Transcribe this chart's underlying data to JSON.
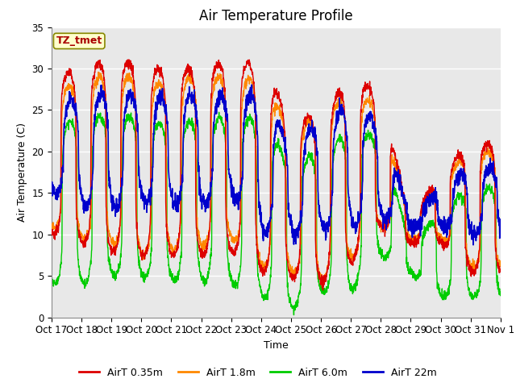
{
  "title": "Air Temperature Profile",
  "xlabel": "Time",
  "ylabel": "Air Temperature (C)",
  "ylim": [
    0,
    35
  ],
  "background_color": "#ffffff",
  "plot_bg_color": "#e8e8e8",
  "grid_color": "#ffffff",
  "colors": {
    "AirT 0.35m": "#dd0000",
    "AirT 1.8m": "#ff8800",
    "AirT 6.0m": "#00cc00",
    "AirT 22m": "#0000cc"
  },
  "xtick_labels": [
    "Oct 17",
    "Oct 18",
    "Oct 19",
    "Oct 20",
    "Oct 21",
    "Oct 22",
    "Oct 23",
    "Oct 24",
    "Oct 25",
    "Oct 26",
    "Oct 27",
    "Oct 28",
    "Oct 29",
    "Oct 30",
    "Oct 31",
    "Nov 1"
  ],
  "annotation_text": "TZ_tmet",
  "annotation_color": "#aa0000",
  "annotation_bg": "#ffffcc",
  "annotation_border": "#888800",
  "yticks": [
    0,
    5,
    10,
    15,
    20,
    25,
    30,
    35
  ],
  "title_fontsize": 12,
  "label_fontsize": 9,
  "tick_fontsize": 8.5
}
